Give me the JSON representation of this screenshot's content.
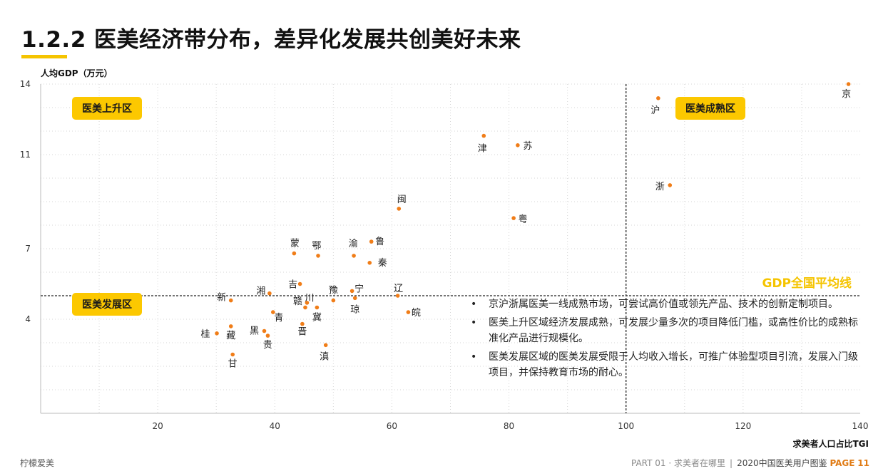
{
  "header": {
    "title": "1.2.2 医美经济带分布，差异化发展共创美好未来"
  },
  "zones": {
    "rising": "医美上升区",
    "mature": "医美成熟区",
    "developing": "医美发展区"
  },
  "chart_data": {
    "type": "scatter",
    "ylabel": "人均GDP（万元）",
    "xlabel": "求美者人口占比TGI",
    "xlim": [
      0,
      140
    ],
    "ylim": [
      0,
      14
    ],
    "x_ticks": [
      "20",
      "40",
      "60",
      "80",
      "100",
      "120",
      "140"
    ],
    "y_ticks": [
      "4",
      "7",
      "11",
      "14"
    ],
    "avg_gdp": 5.0,
    "avg_gdp_label": "GDP全国平均线",
    "avg_tgi": 100,
    "point_color": "#f07d18",
    "points": [
      {
        "label": "京",
        "x": 138.0,
        "y": 14.0
      },
      {
        "label": "沪",
        "x": 105.5,
        "y": 13.4
      },
      {
        "label": "浙",
        "x": 107.5,
        "y": 9.7
      },
      {
        "label": "津",
        "x": 75.7,
        "y": 11.8
      },
      {
        "label": "苏",
        "x": 81.5,
        "y": 11.4
      },
      {
        "label": "闽",
        "x": 61.2,
        "y": 8.7
      },
      {
        "label": "粤",
        "x": 80.8,
        "y": 8.3
      },
      {
        "label": "鲁",
        "x": 56.5,
        "y": 7.3
      },
      {
        "label": "渝",
        "x": 53.5,
        "y": 6.7
      },
      {
        "label": "秦",
        "x": 56.2,
        "y": 6.4
      },
      {
        "label": "辽",
        "x": 61.0,
        "y": 5.0
      },
      {
        "label": "蒙",
        "x": 43.3,
        "y": 6.8
      },
      {
        "label": "鄂",
        "x": 47.4,
        "y": 6.7
      },
      {
        "label": "吉",
        "x": 44.3,
        "y": 5.5
      },
      {
        "label": "川",
        "x": 45.2,
        "y": 4.5
      },
      {
        "label": "湘",
        "x": 39.1,
        "y": 5.1
      },
      {
        "label": "赣",
        "x": 45.5,
        "y": 4.7
      },
      {
        "label": "豫",
        "x": 50.0,
        "y": 4.8
      },
      {
        "label": "宁",
        "x": 53.2,
        "y": 5.2
      },
      {
        "label": "琼",
        "x": 53.7,
        "y": 4.9
      },
      {
        "label": "皖",
        "x": 62.8,
        "y": 4.3
      },
      {
        "label": "新",
        "x": 32.5,
        "y": 4.8
      },
      {
        "label": "青",
        "x": 39.7,
        "y": 4.3
      },
      {
        "label": "黑",
        "x": 38.2,
        "y": 3.5
      },
      {
        "label": "贵",
        "x": 38.8,
        "y": 3.3
      },
      {
        "label": "晋",
        "x": 44.7,
        "y": 3.8
      },
      {
        "label": "冀",
        "x": 47.2,
        "y": 4.5
      },
      {
        "label": "滇",
        "x": 48.7,
        "y": 2.9
      },
      {
        "label": "桂",
        "x": 30.1,
        "y": 3.4
      },
      {
        "label": "藏",
        "x": 32.5,
        "y": 3.7
      },
      {
        "label": "甘",
        "x": 32.8,
        "y": 2.5
      }
    ]
  },
  "notes": [
    "京沪浙属医美一线成熟市场，可尝试高价值或领先产品、技术的创新定制项目。",
    "医美上升区域经济发展成熟，可发展少量多次的项目降低门槛，或高性价比的成熟标准化产品进行规模化。",
    "医美发展区域的医美发展受限于人均收入增长，可推广体验型项目引流，发展入门级项目，并保持教育市场的耐心。"
  ],
  "footer": {
    "brand": "柠檬爱美",
    "section": "PART 01 · 求美者在哪里",
    "separator": "|",
    "report": "2020中国医美用户图鉴",
    "page_label": "PAGE",
    "page_number": "11"
  }
}
